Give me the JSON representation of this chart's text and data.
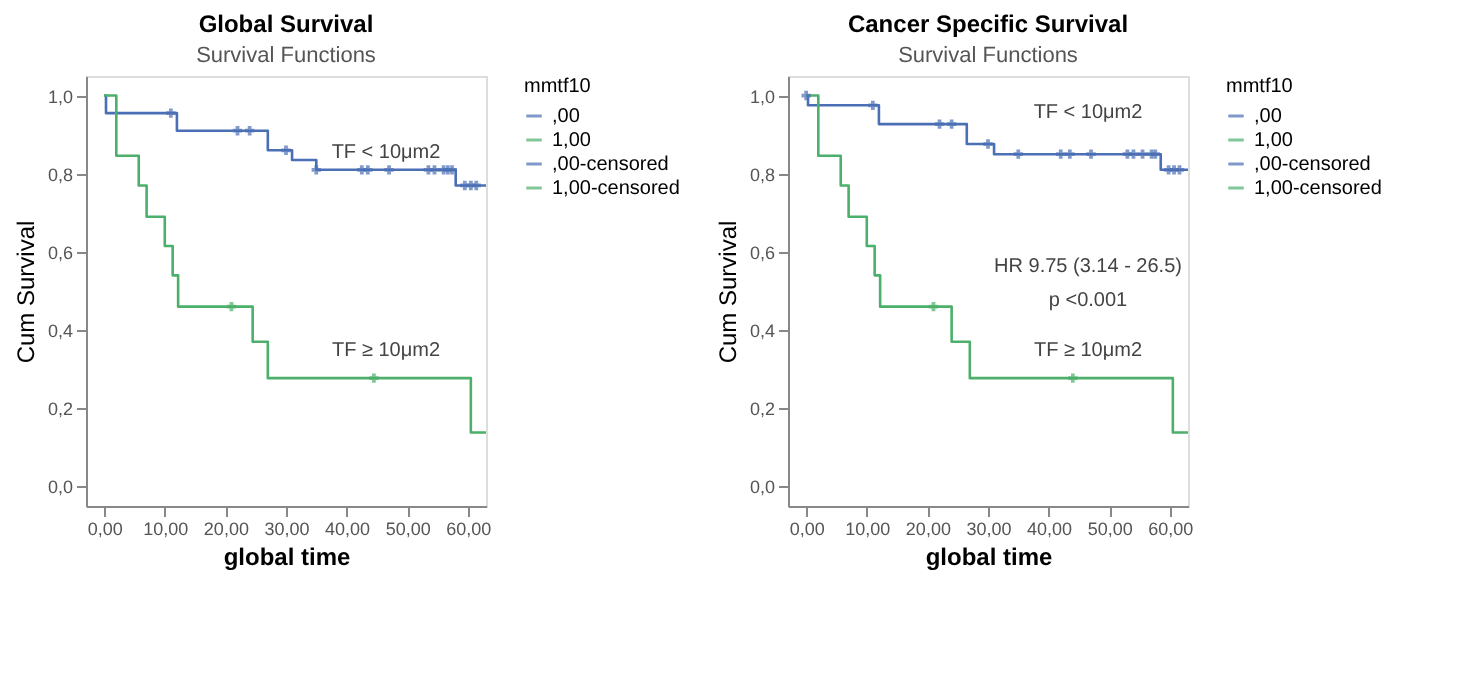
{
  "chart_data": [
    {
      "type": "step",
      "title": "Global Survival",
      "subtitle": "Survival Functions",
      "xlabel": "global time",
      "ylabel": "Cum Survival",
      "legend_title": "mmtf10",
      "legend": "right",
      "grid": false,
      "xlim": [
        -3,
        63
      ],
      "ylim": [
        -0.05,
        1.05
      ],
      "xticks": [
        {
          "value": 0,
          "label": "0,00"
        },
        {
          "value": 10,
          "label": "10,00"
        },
        {
          "value": 20,
          "label": "20,00"
        },
        {
          "value": 30,
          "label": "30,00"
        },
        {
          "value": 40,
          "label": "40,00"
        },
        {
          "value": 50,
          "label": "50,00"
        },
        {
          "value": 60,
          "label": "60,00"
        }
      ],
      "yticks": [
        {
          "value": 0,
          "label": "0,0"
        },
        {
          "value": 0.2,
          "label": "0,2"
        },
        {
          "value": 0.4,
          "label": "0,4"
        },
        {
          "value": 0.6,
          "label": "0,6"
        },
        {
          "value": 0.8,
          "label": "0,8"
        },
        {
          "value": 1,
          "label": "1,0"
        }
      ],
      "series": [
        {
          "name": ",00",
          "color": "#4a6fb5",
          "x": [
            0,
            0.3,
            12,
            27,
            31,
            35,
            58,
            63
          ],
          "values": [
            1.0,
            0.955,
            0.91,
            0.86,
            0.835,
            0.81,
            0.77,
            0.77
          ]
        },
        {
          "name": "1,00",
          "color": "#4caf6a",
          "x": [
            0,
            2,
            5.7,
            7,
            10,
            11.3,
            12.2,
            24.5,
            27,
            60.5,
            63
          ],
          "values": [
            1.0,
            0.846,
            0.77,
            0.69,
            0.615,
            0.54,
            0.46,
            0.37,
            0.277,
            0.138,
            0.138
          ]
        },
        {
          "name": ",00-censored",
          "type": "scatter",
          "marker": "cross",
          "color": "#4a6fb5",
          "x": [
            11,
            22,
            24,
            30,
            35,
            42.5,
            43.5,
            47,
            53.5,
            54.5,
            56,
            56.7,
            57.4,
            59.5,
            60.5,
            61.4
          ],
          "values": [
            0.955,
            0.91,
            0.91,
            0.86,
            0.81,
            0.81,
            0.81,
            0.81,
            0.81,
            0.81,
            0.81,
            0.81,
            0.81,
            0.77,
            0.77,
            0.77
          ]
        },
        {
          "name": "1,00-censored",
          "type": "scatter",
          "marker": "cross",
          "color": "#4caf6a",
          "x": [
            21,
            44.5
          ],
          "values": [
            0.46,
            0.277
          ]
        }
      ],
      "annotations": [
        "TF < 10μm2",
        "TF ≥ 10μm2"
      ]
    },
    {
      "type": "step",
      "title": "Cancer Specific Survival",
      "subtitle": "Survival Functions",
      "xlabel": "global time",
      "ylabel": "Cum Survival",
      "legend_title": "mmtf10",
      "legend": "right",
      "grid": false,
      "xlim": [
        -3,
        63
      ],
      "ylim": [
        -0.05,
        1.05
      ],
      "xticks": [
        {
          "value": 0,
          "label": "0,00"
        },
        {
          "value": 10,
          "label": "10,00"
        },
        {
          "value": 20,
          "label": "20,00"
        },
        {
          "value": 30,
          "label": "30,00"
        },
        {
          "value": 40,
          "label": "40,00"
        },
        {
          "value": 50,
          "label": "50,00"
        },
        {
          "value": 60,
          "label": "60,00"
        }
      ],
      "yticks": [
        {
          "value": 0,
          "label": "0,0"
        },
        {
          "value": 0.2,
          "label": "0,2"
        },
        {
          "value": 0.4,
          "label": "0,4"
        },
        {
          "value": 0.6,
          "label": "0,6"
        },
        {
          "value": 0.8,
          "label": "0,8"
        },
        {
          "value": 1,
          "label": "1,0"
        }
      ],
      "series": [
        {
          "name": ",00",
          "color": "#4a6fb5",
          "x": [
            0,
            0.3,
            12,
            26.5,
            31,
            58.5,
            63
          ],
          "values": [
            1.0,
            0.975,
            0.927,
            0.876,
            0.85,
            0.81,
            0.81
          ]
        },
        {
          "name": "1,00",
          "color": "#4caf6a",
          "x": [
            0,
            2,
            5.7,
            7,
            10,
            11.3,
            12.2,
            24,
            27,
            60.5,
            63
          ],
          "values": [
            1.0,
            0.846,
            0.77,
            0.69,
            0.615,
            0.54,
            0.46,
            0.37,
            0.277,
            0.138,
            0.138
          ]
        },
        {
          "name": ",00-censored",
          "type": "scatter",
          "marker": "cross",
          "color": "#4a6fb5",
          "x": [
            0,
            11,
            22,
            24,
            30,
            35,
            42,
            43.5,
            47,
            53,
            54,
            55.5,
            57,
            57.6,
            59.8,
            60.7,
            61.6
          ],
          "values": [
            1.0,
            0.975,
            0.927,
            0.927,
            0.876,
            0.85,
            0.85,
            0.85,
            0.85,
            0.85,
            0.85,
            0.85,
            0.85,
            0.85,
            0.81,
            0.81,
            0.81
          ]
        },
        {
          "name": "1,00-censored",
          "type": "scatter",
          "marker": "cross",
          "color": "#4caf6a",
          "x": [
            21,
            44
          ],
          "values": [
            0.46,
            0.277
          ]
        }
      ],
      "annotations": [
        "TF < 10μm2",
        "HR 9.75 (3.14 - 26.5)",
        "p <0.001",
        "TF ≥ 10μm2"
      ]
    }
  ]
}
